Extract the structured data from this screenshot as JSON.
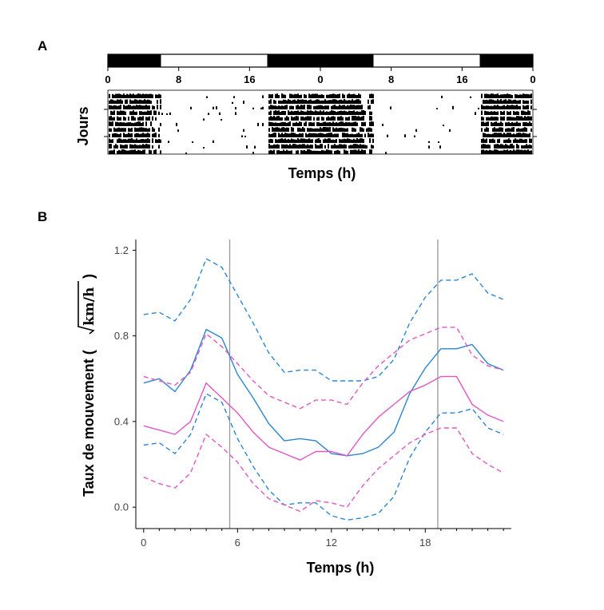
{
  "panel_a": {
    "label": "A",
    "ylabel": "Jours",
    "xlabel": "Temps (h)",
    "ticks": [
      "0",
      "8",
      "16",
      "0",
      "8",
      "16",
      "0"
    ],
    "light_dark_bar": [
      "dark",
      "light",
      "dark",
      "light",
      "dark"
    ]
  },
  "panel_b": {
    "label": "B",
    "ylabel_prefix": "Taux de mouvement (",
    "ylabel_unit": "km/h",
    "ylabel_suffix": ")",
    "xlabel": "Temps (h)"
  },
  "colors": {
    "blue": "#2b86d0",
    "pink": "#e255c5",
    "vline": "#999999"
  },
  "chart_data": [
    {
      "type": "actogram",
      "title": "",
      "xlabel": "Temps (h)",
      "ylabel": "Jours",
      "x_ticks": [
        "0",
        "8",
        "16",
        "0",
        "8",
        "16",
        "0"
      ],
      "x_range_hours": [
        0,
        48
      ],
      "dark_periods_hours": [
        [
          0,
          6
        ],
        [
          18,
          30
        ],
        [
          42,
          48
        ]
      ],
      "light_periods_hours": [
        [
          6,
          18
        ],
        [
          30,
          42
        ]
      ]
    },
    {
      "type": "line",
      "title": "",
      "xlabel": "Temps (h)",
      "ylabel": "Taux de mouvement (√km/h)",
      "xlim": [
        -0.5,
        23.5
      ],
      "ylim": [
        -0.1,
        1.25
      ],
      "x_ticks": [
        0,
        6,
        12,
        18
      ],
      "y_ticks": [
        0.0,
        0.4,
        0.8,
        1.2
      ],
      "y_tick_labels": [
        "0.0",
        "0.4",
        "0.8",
        "1.2"
      ],
      "vertical_lines": [
        5.5,
        18.8
      ],
      "x": [
        0,
        1,
        2,
        3,
        4,
        5,
        6,
        7,
        8,
        9,
        10,
        11,
        12,
        13,
        14,
        15,
        16,
        17,
        18,
        19,
        20,
        21,
        22,
        23
      ],
      "series": [
        {
          "name": "blue_mean",
          "color": "blue",
          "style": "solid",
          "values": [
            0.58,
            0.6,
            0.54,
            0.64,
            0.83,
            0.79,
            0.62,
            0.51,
            0.39,
            0.31,
            0.32,
            0.31,
            0.25,
            0.24,
            0.25,
            0.28,
            0.35,
            0.53,
            0.65,
            0.74,
            0.74,
            0.76,
            0.67,
            0.64
          ]
        },
        {
          "name": "blue_upper",
          "color": "blue",
          "style": "dashed",
          "values": [
            0.9,
            0.91,
            0.87,
            0.97,
            1.16,
            1.12,
            0.99,
            0.86,
            0.72,
            0.63,
            0.64,
            0.64,
            0.59,
            0.59,
            0.59,
            0.61,
            0.69,
            0.86,
            0.98,
            1.06,
            1.06,
            1.09,
            1.0,
            0.97
          ]
        },
        {
          "name": "blue_lower",
          "color": "blue",
          "style": "dashed",
          "values": [
            0.29,
            0.3,
            0.25,
            0.34,
            0.53,
            0.49,
            0.32,
            0.19,
            0.08,
            0.01,
            0.02,
            0.02,
            -0.04,
            -0.06,
            -0.05,
            -0.03,
            0.05,
            0.23,
            0.35,
            0.44,
            0.44,
            0.46,
            0.37,
            0.34
          ]
        },
        {
          "name": "pink_mean",
          "color": "pink",
          "style": "solid",
          "values": [
            0.38,
            0.36,
            0.34,
            0.4,
            0.58,
            0.51,
            0.44,
            0.35,
            0.28,
            0.25,
            0.22,
            0.26,
            0.26,
            0.24,
            0.34,
            0.42,
            0.48,
            0.54,
            0.57,
            0.61,
            0.61,
            0.48,
            0.43,
            0.4
          ]
        },
        {
          "name": "pink_upper",
          "color": "pink",
          "style": "dashed",
          "values": [
            0.61,
            0.59,
            0.57,
            0.63,
            0.81,
            0.75,
            0.67,
            0.59,
            0.52,
            0.49,
            0.46,
            0.5,
            0.5,
            0.48,
            0.58,
            0.66,
            0.72,
            0.78,
            0.81,
            0.84,
            0.84,
            0.71,
            0.66,
            0.64
          ]
        },
        {
          "name": "pink_lower",
          "color": "pink",
          "style": "dashed",
          "values": [
            0.14,
            0.11,
            0.09,
            0.16,
            0.34,
            0.28,
            0.21,
            0.11,
            0.04,
            0.01,
            -0.02,
            0.03,
            0.02,
            0.0,
            0.1,
            0.18,
            0.24,
            0.3,
            0.34,
            0.37,
            0.37,
            0.25,
            0.2,
            0.16
          ]
        }
      ]
    }
  ]
}
